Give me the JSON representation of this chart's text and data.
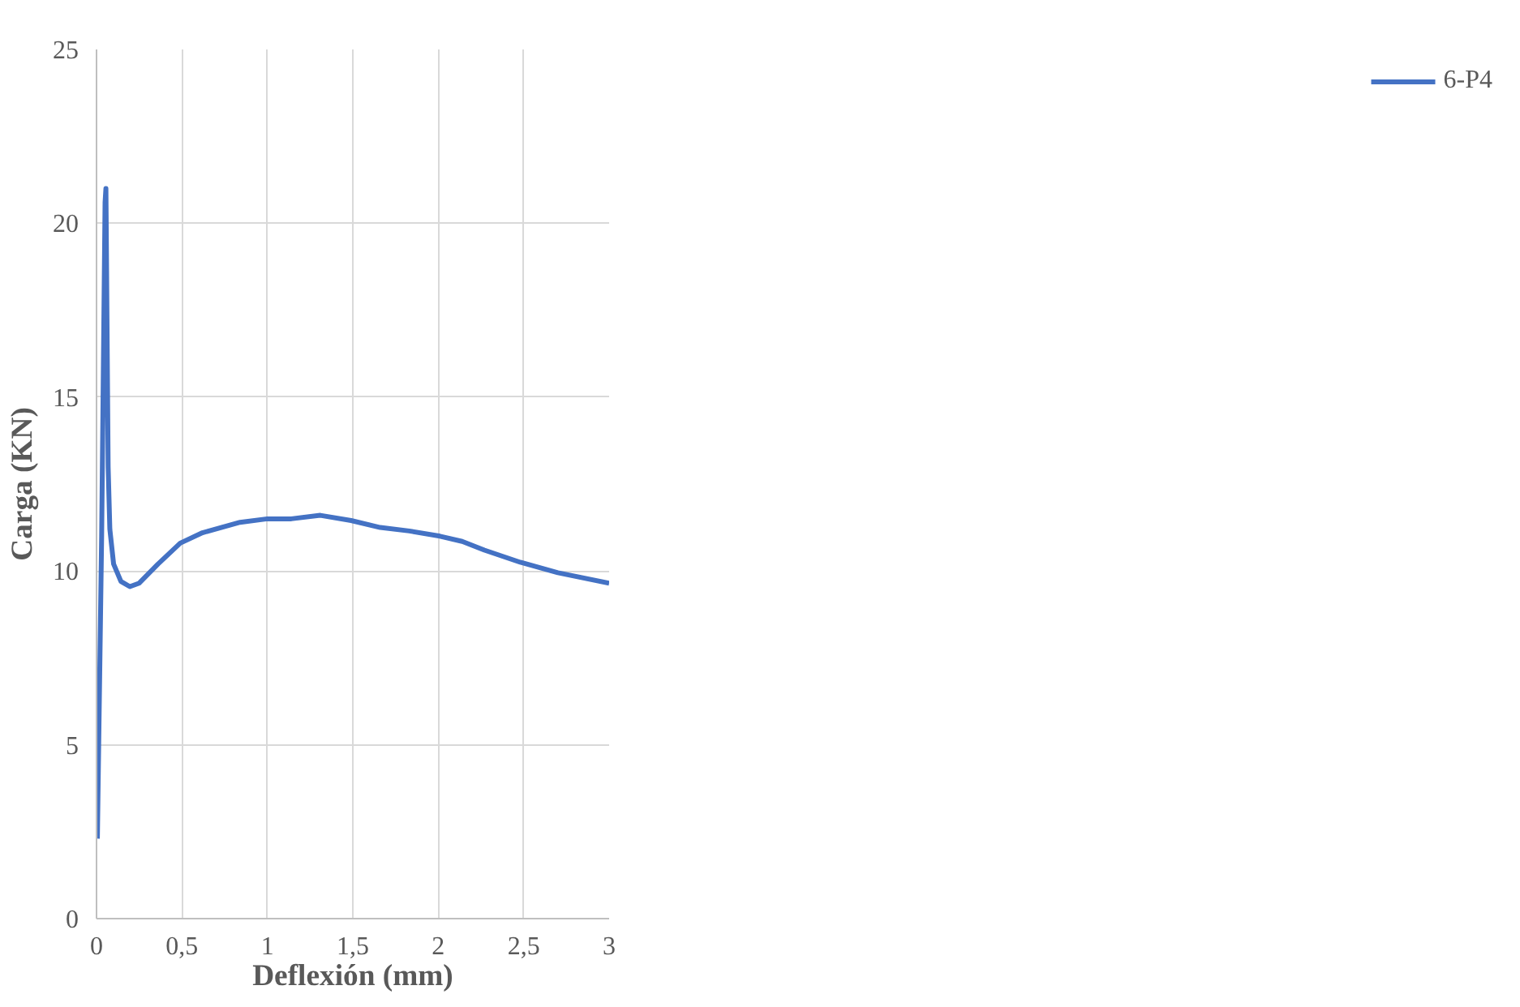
{
  "chart_data": {
    "type": "line",
    "xlabel": "Deflexión (mm)",
    "ylabel": "Carga (KN)",
    "xlim": [
      0,
      3
    ],
    "ylim": [
      0,
      25
    ],
    "xticks": [
      0,
      {
        "value": 0.5,
        "label": "0,5"
      },
      1,
      {
        "value": 1.5,
        "label": "1,5"
      },
      2,
      {
        "value": 2.5,
        "label": "2,5"
      },
      3
    ],
    "yticks": [
      0,
      5,
      10,
      15,
      20,
      25
    ],
    "grid": true,
    "legend": "right",
    "series": [
      {
        "name": "6-P4",
        "color": "#4472c4",
        "x": [
          0.005,
          0.03,
          0.05,
          0.055,
          0.06,
          0.068,
          0.078,
          0.1,
          0.143,
          0.195,
          0.25,
          0.36,
          0.49,
          0.62,
          0.84,
          1.0,
          1.14,
          1.31,
          1.49,
          1.66,
          1.83,
          2.01,
          2.14,
          2.27,
          2.48,
          2.7,
          3.0
        ],
        "values": [
          2.3,
          11,
          20.6,
          21.0,
          18,
          13,
          11.2,
          10.2,
          9.7,
          9.55,
          9.65,
          10.2,
          10.8,
          11.1,
          11.4,
          11.5,
          11.5,
          11.6,
          11.45,
          11.25,
          11.15,
          11.0,
          10.85,
          10.6,
          10.25,
          9.95,
          9.65
        ]
      }
    ]
  }
}
